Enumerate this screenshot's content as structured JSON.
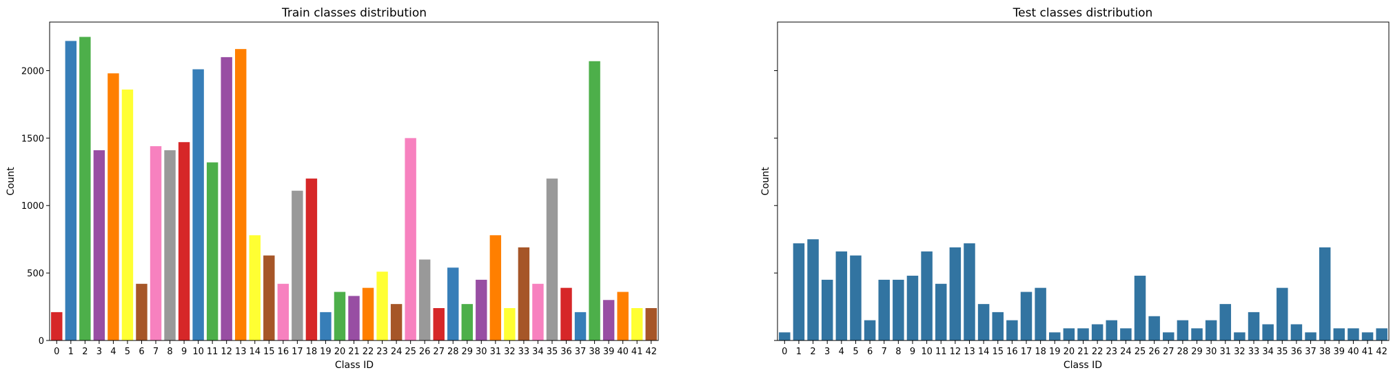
{
  "chart_data": [
    {
      "type": "bar",
      "title": "Train classes distribution",
      "xlabel": "Class ID",
      "ylabel": "Count",
      "ylim": [
        0,
        2360
      ],
      "yticks": [
        0,
        500,
        1000,
        1500,
        2000
      ],
      "grid": false,
      "categories": [
        "0",
        "1",
        "2",
        "3",
        "4",
        "5",
        "6",
        "7",
        "8",
        "9",
        "10",
        "11",
        "12",
        "13",
        "14",
        "15",
        "16",
        "17",
        "18",
        "19",
        "20",
        "21",
        "22",
        "23",
        "24",
        "25",
        "26",
        "27",
        "28",
        "29",
        "30",
        "31",
        "32",
        "33",
        "34",
        "35",
        "36",
        "37",
        "38",
        "39",
        "40",
        "41",
        "42"
      ],
      "values": [
        210,
        2220,
        2250,
        1410,
        1980,
        1860,
        420,
        1440,
        1410,
        1470,
        2010,
        1320,
        2100,
        2160,
        780,
        630,
        420,
        1110,
        1200,
        210,
        360,
        330,
        390,
        510,
        270,
        1500,
        600,
        240,
        540,
        270,
        450,
        780,
        240,
        690,
        420,
        1200,
        390,
        210,
        2070,
        300,
        360,
        240,
        240
      ],
      "colors": [
        "#d62728",
        "#377eb8",
        "#4daf4a",
        "#984ea3",
        "#ff7f00",
        "#ffff33",
        "#a65628",
        "#f781bf",
        "#999999"
      ]
    },
    {
      "type": "bar",
      "title": "Test classes distribution",
      "xlabel": "Class ID",
      "ylabel": "Count",
      "ylim": [
        0,
        2360
      ],
      "shared_y": true,
      "grid": false,
      "categories": [
        "0",
        "1",
        "2",
        "3",
        "4",
        "5",
        "6",
        "7",
        "8",
        "9",
        "10",
        "11",
        "12",
        "13",
        "14",
        "15",
        "16",
        "17",
        "18",
        "19",
        "20",
        "21",
        "22",
        "23",
        "24",
        "25",
        "26",
        "27",
        "28",
        "29",
        "30",
        "31",
        "32",
        "33",
        "34",
        "35",
        "36",
        "37",
        "38",
        "39",
        "40",
        "41",
        "42"
      ],
      "values": [
        60,
        720,
        750,
        450,
        660,
        630,
        150,
        450,
        450,
        480,
        660,
        420,
        690,
        720,
        270,
        210,
        150,
        360,
        390,
        60,
        90,
        90,
        120,
        150,
        90,
        480,
        180,
        60,
        150,
        90,
        150,
        270,
        60,
        210,
        120,
        390,
        120,
        60,
        690,
        90,
        90,
        60,
        90
      ],
      "color": "#3274a1"
    }
  ]
}
